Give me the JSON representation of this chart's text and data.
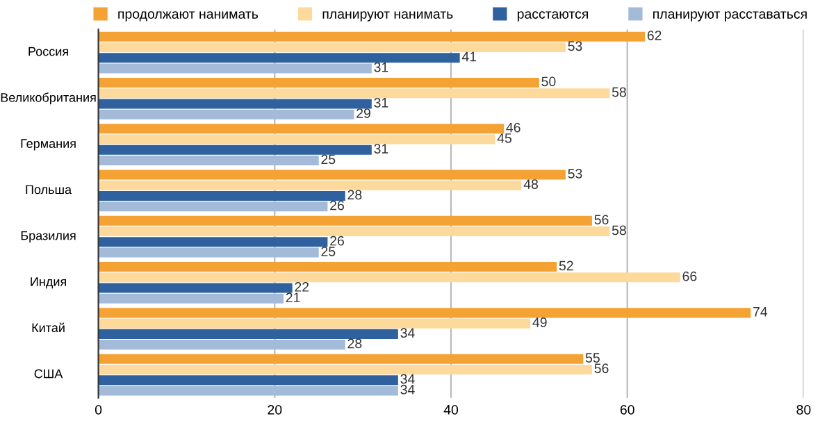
{
  "chart_data": {
    "type": "bar",
    "orientation": "horizontal",
    "categories": [
      "Россия",
      "Великобритания",
      "Германия",
      "Польша",
      "Бразилия",
      "Индия",
      "Китай",
      "США"
    ],
    "series": [
      {
        "name": "продолжают нанимать",
        "color": "#f4a233",
        "values": [
          62,
          50,
          46,
          53,
          56,
          52,
          74,
          55
        ]
      },
      {
        "name": "планируют нанимать",
        "color": "#fdd99b",
        "values": [
          53,
          58,
          45,
          48,
          58,
          66,
          49,
          56
        ]
      },
      {
        "name": "расстаются",
        "color": "#30619f",
        "values": [
          41,
          31,
          31,
          28,
          26,
          22,
          34,
          34
        ]
      },
      {
        "name": "планируют расставаться",
        "color": "#a3bbd9",
        "values": [
          31,
          29,
          25,
          26,
          25,
          21,
          28,
          34
        ]
      }
    ],
    "xlim": [
      0,
      80
    ],
    "xticks": [
      0,
      20,
      40,
      60,
      80
    ],
    "grid": "x",
    "legend": "top",
    "data_labels": true
  }
}
